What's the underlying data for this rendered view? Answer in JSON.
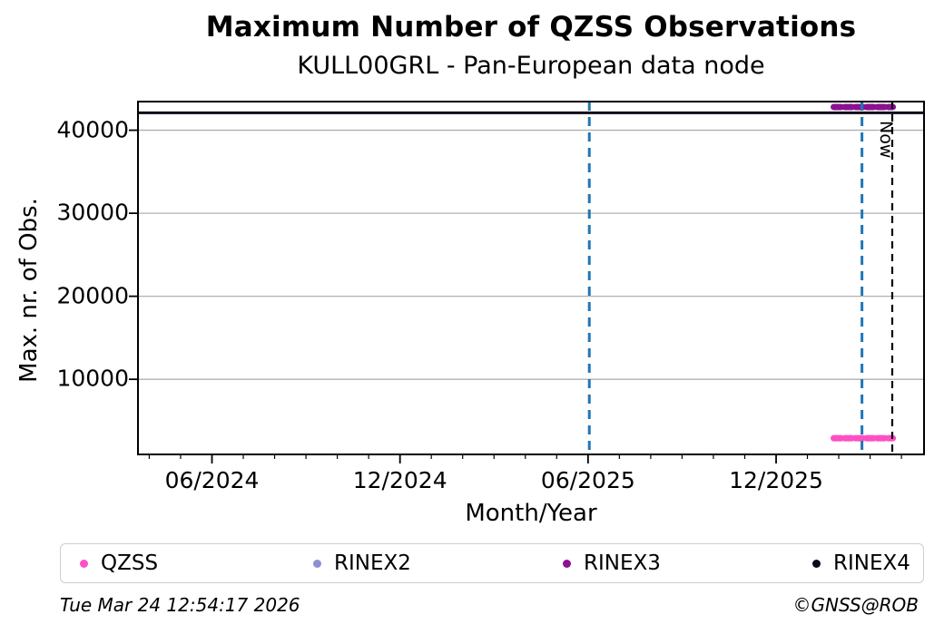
{
  "chart_data": {
    "type": "line",
    "title": "Maximum Number of QZSS Observations",
    "subtitle": "KULL00GRL - Pan-European data node",
    "xlabel": "Month/Year",
    "ylabel": "Max. nr. of Obs.",
    "xlim": [
      2024.22,
      2026.31
    ],
    "ylim": [
      950,
      43450
    ],
    "grid": "horizontal-only",
    "legend_position": "bottom",
    "xticks": [
      {
        "value": 2024.4167,
        "label": "06/2024"
      },
      {
        "value": 2024.9167,
        "label": "12/2024"
      },
      {
        "value": 2025.4167,
        "label": "06/2025"
      },
      {
        "value": 2025.9167,
        "label": "12/2025"
      }
    ],
    "minor_xtick_interval_years": 0.08333,
    "yticks": [
      {
        "value": 10000,
        "label": "10000"
      },
      {
        "value": 20000,
        "label": "20000"
      },
      {
        "value": 30000,
        "label": "30000"
      },
      {
        "value": 40000,
        "label": "40000"
      }
    ],
    "series": [
      {
        "name": "QZSS",
        "color": "#ff4fc3",
        "style": "dotted-thick",
        "segment": {
          "y": 2900,
          "x0": 2026.07,
          "x1": 2026.227
        }
      },
      {
        "name": "RINEX2",
        "color": "#918fd0",
        "style": "dotted-thick",
        "segment": null
      },
      {
        "name": "RINEX3",
        "color": "#8c1292",
        "style": "dotted-thick",
        "segment": {
          "y": 42800,
          "x0": 2026.07,
          "x1": 2026.227
        }
      },
      {
        "name": "RINEX4",
        "color": "#100818",
        "style": "solid",
        "segment": {
          "y": 42100,
          "x0": 2024.22,
          "x1": 2026.31
        }
      }
    ],
    "vlines": [
      {
        "x": 2025.42,
        "color": "#1f77b4",
        "style": "dashed"
      },
      {
        "x": 2026.145,
        "color": "#1f77b4",
        "style": "dashed"
      },
      {
        "x": 2026.2255,
        "color": "#000000",
        "style": "dashed",
        "label": "Now"
      }
    ]
  },
  "footer": {
    "timestamp": "Tue Mar 24 12:54:17 2026",
    "credit": "©GNSS@ROB"
  }
}
